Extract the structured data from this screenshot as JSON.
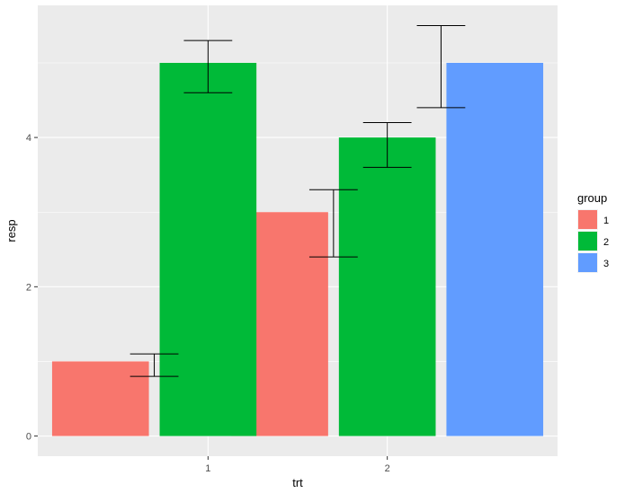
{
  "chart_data": {
    "type": "bar",
    "xlabel": "trt",
    "ylabel": "resp",
    "categories": [
      "1",
      "2"
    ],
    "series": [
      {
        "name": "1",
        "color": "#F8766D",
        "values": [
          1,
          3
        ]
      },
      {
        "name": "2",
        "color": "#00BA38",
        "values": [
          5,
          4
        ]
      },
      {
        "name": "3",
        "color": "#619CFF",
        "values": [
          null,
          5
        ]
      }
    ],
    "errorbars": [
      {
        "category": "1",
        "position": "between series 1 and 2",
        "lower": 0.8,
        "upper": 1.1
      },
      {
        "category": "1",
        "position": "series 2",
        "lower": 4.6,
        "upper": 5.3
      },
      {
        "category": "2",
        "position": "between series 1 and 2",
        "lower": 2.4,
        "upper": 3.3
      },
      {
        "category": "2",
        "position": "series 2",
        "lower": 3.6,
        "upper": 4.2
      },
      {
        "category": "2",
        "position": "between series 2 and 3",
        "lower": 4.4,
        "upper": 5.5
      }
    ],
    "ylim": [
      -0.27,
      5.77
    ],
    "yticks": [
      0,
      2,
      4
    ],
    "legend": {
      "title": "group",
      "placement": "right"
    },
    "panel_background": "#EBEBEB",
    "grid": true
  }
}
